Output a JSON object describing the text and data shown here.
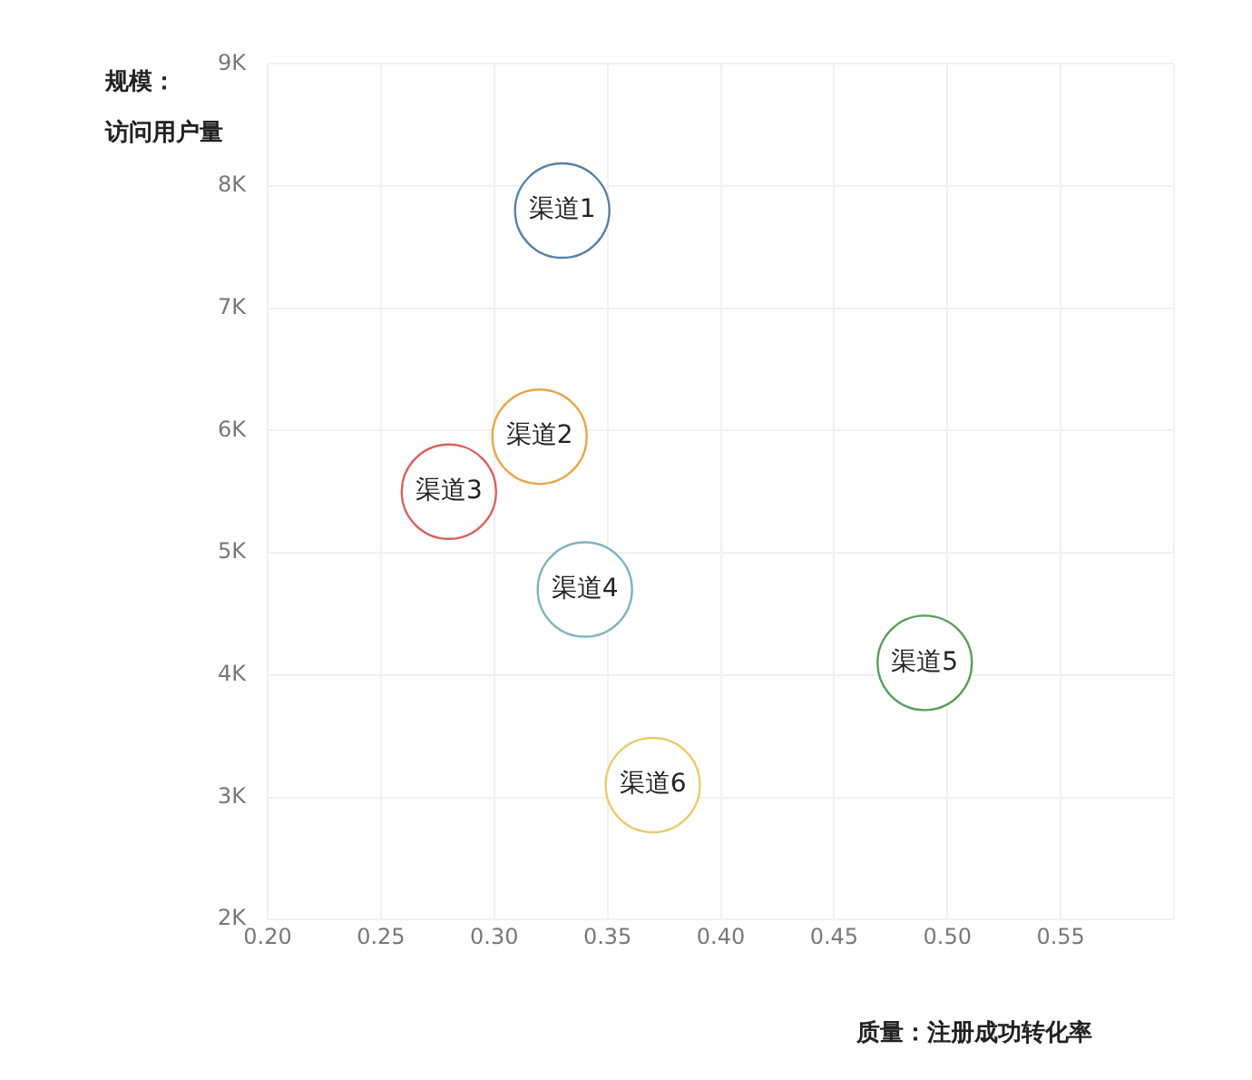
{
  "chart_data": {
    "type": "scatter",
    "ylabel": "规模：访问用户量",
    "xlabel": "质量：注册成功转化率",
    "xlim": [
      0.2,
      0.6
    ],
    "xticks": [
      {
        "value": 0.2,
        "label": "0.20"
      },
      0.25,
      {
        "value": 0.3,
        "label": "0.30"
      },
      0.35,
      {
        "value": 0.4,
        "label": "0.40"
      },
      0.45,
      {
        "value": 0.5,
        "label": "0.50"
      },
      0.55,
      {
        "value": 0.6,
        "label": null
      }
    ],
    "ylim": [
      2000,
      9000
    ],
    "yticks": [
      {
        "value": 2000,
        "label": "2K"
      },
      {
        "value": 3000,
        "label": "3K"
      },
      {
        "value": 4000,
        "label": "4K"
      },
      {
        "value": 5000,
        "label": "5K"
      },
      {
        "value": 6000,
        "label": "6K"
      },
      {
        "value": 7000,
        "label": "7K"
      },
      {
        "value": 8000,
        "label": "8K"
      },
      {
        "value": 9000,
        "label": "9K"
      }
    ],
    "grid": true,
    "legend": false,
    "marker": "circle",
    "series": [
      {
        "name": "渠道1",
        "color": "#5b7fa6",
        "x": [
          0.33
        ],
        "values": [
          7800
        ]
      },
      {
        "name": "渠道2",
        "color": "#e8a54b",
        "x": [
          0.32
        ],
        "values": [
          5950
        ]
      },
      {
        "name": "渠道3",
        "color": "#d9605f",
        "x": [
          0.28
        ],
        "values": [
          5500
        ]
      },
      {
        "name": "渠道4",
        "color": "#7fb3c0",
        "x": [
          0.34
        ],
        "values": [
          4700
        ]
      },
      {
        "name": "渠道5",
        "color": "#5a9e5a",
        "x": [
          0.49
        ],
        "values": [
          4100
        ]
      },
      {
        "name": "渠道6",
        "color": "#e8cc6a",
        "x": [
          0.37
        ],
        "values": [
          3100
        ]
      }
    ]
  }
}
